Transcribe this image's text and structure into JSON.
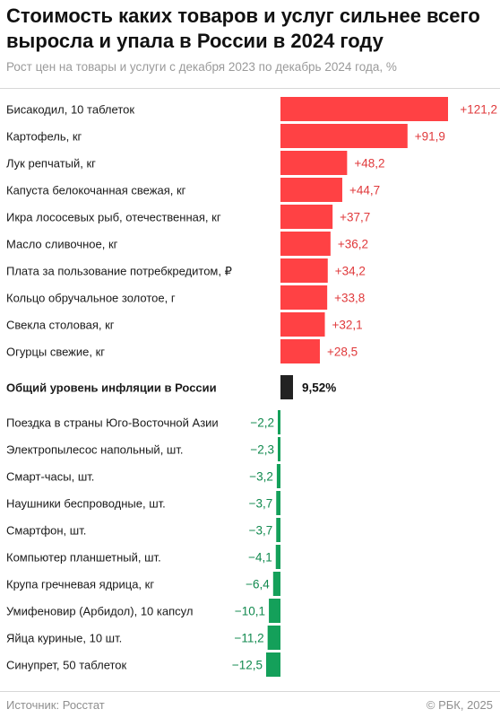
{
  "title": "Стоимость каких товаров и услуг сильнее всего выросла и упала в России в 2024 году",
  "subtitle": "Рост цен на товары и услуги с декабря 2023 по декабрь 2024 года, %",
  "footer": {
    "source": "Источник: Росстат",
    "copyright": "© РБК, 2025"
  },
  "colors": {
    "increase": "#ff4144",
    "increase_text": "#e0393b",
    "decrease": "#14a05a",
    "decrease_text": "#128a4f",
    "inflation": "#222222"
  },
  "chart_data": {
    "type": "bar",
    "orientation": "horizontal",
    "unit": "%",
    "categories": [
      "Бисакодил, 10 таблеток",
      "Картофель, кг",
      "Лук репчатый, кг",
      "Капуста белокочанная свежая, кг",
      "Икра лососевых рыб, отечественная, кг",
      "Масло сливочное, кг",
      "Плата за пользование потребкредитом, ₽",
      "Кольцо обручальное золотое, г",
      "Свекла столовая, кг",
      "Огурцы свежие, кг",
      "Общий уровень инфляции в России",
      "Поездка в страны Юго-Восточной Азии",
      "Электропылесос напольный, шт.",
      "Смарт-часы, шт.",
      "Наушники беспроводные, шт.",
      "Смартфон, шт.",
      "Компьютер планшетный, шт.",
      "Крупа гречневая ядрица, кг",
      "Умифеновир (Арбидол), 10 капсул",
      "Яйца куриные, 10 шт.",
      "Синупрет, 50 таблеток"
    ],
    "values": [
      121.2,
      91.9,
      48.2,
      44.7,
      37.7,
      36.2,
      34.2,
      33.8,
      32.1,
      28.5,
      9.52,
      -2.2,
      -2.3,
      -3.2,
      -3.7,
      -3.7,
      -4.1,
      -6.4,
      -10.1,
      -11.2,
      -12.5
    ],
    "value_labels": [
      "+121,2",
      "+91,9",
      "+48,2",
      "+44,7",
      "+37,7",
      "+36,2",
      "+34,2",
      "+33,8",
      "+32,1",
      "+28,5",
      "9,52%",
      "−2,2",
      "−2,3",
      "−3,2",
      "−3,7",
      "−3,7",
      "−4,1",
      "−6,4",
      "−10,1",
      "−11,2",
      "−12,5"
    ],
    "highlight_index": 10
  }
}
